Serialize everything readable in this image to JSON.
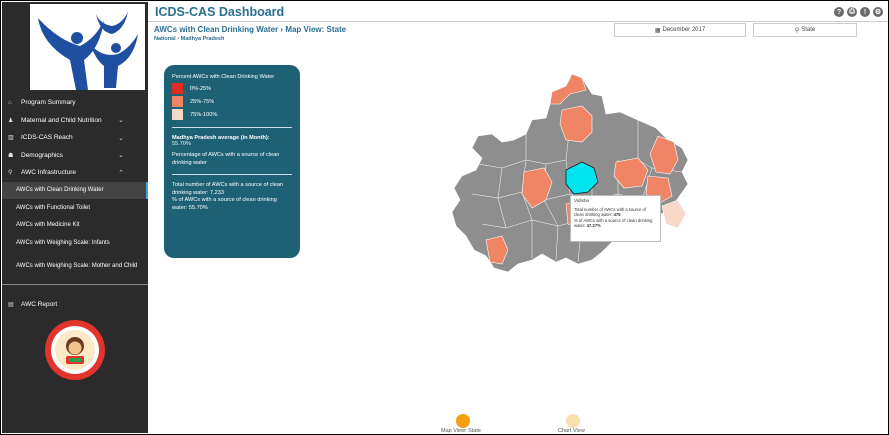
{
  "sidebar": {
    "nav": [
      {
        "label": "Program Summary",
        "icon": "home-icon",
        "glyph": "⌂"
      },
      {
        "label": "Maternal and Child Nutrition",
        "icon": "person-icon",
        "glyph": "♟"
      },
      {
        "label": "ICDS-CAS Reach",
        "icon": "bar-chart-icon",
        "glyph": "▥"
      },
      {
        "label": "Demographics",
        "icon": "group-icon",
        "glyph": "☗"
      },
      {
        "label": "AWC Infrastructure",
        "icon": "map-marker-icon",
        "glyph": "⚲"
      }
    ],
    "sub_items": [
      "AWCs with Clean Drinking Water",
      "AWCs with Functional Toilet",
      "AWCs with Medicine Kit",
      "AWCs with Weighing Scale: Infants",
      "AWCs with Weighing Scale: Mother and Child"
    ],
    "awc_report": "AWC Report"
  },
  "header": {
    "title": "ICDS-CAS Dashboard",
    "subtitle": "AWCs with Clean Drinking Water",
    "view": "Map View: State",
    "crumb_root": "National",
    "crumb_leaf": "Madhya Pradesh"
  },
  "filters": {
    "month": "December 2017",
    "location": "State"
  },
  "legend": {
    "title": "Percent AWCs with Clean Drinking Water",
    "ranges": [
      {
        "label": "0%-25%",
        "color": "#e02b20"
      },
      {
        "label": "25%-75%",
        "color": "#f08565"
      },
      {
        "label": "75%-100%",
        "color": "#f8d8c8"
      }
    ],
    "avg_label": "Madhya Pradesh average (in Month):",
    "avg_value": "55.70%",
    "avg_desc": "Percentage of AWCs with a source of clean drinking water",
    "total_text": "Total number of AWCs with a source of clean drinking water: 7,233",
    "pct_text": "% of AWCs with a source of clean drinking water: 55.70%"
  },
  "tooltip": {
    "district": "Vidisha",
    "total_label": "Total number of AWCs with a source of clean drinking water:",
    "total_value": "476",
    "pct_label": "% of AWCs with a source of clean drinking water:",
    "pct_value": "47.27%"
  },
  "views": {
    "map_label": "Map View: State",
    "chart_label": "Chart View"
  },
  "colors": {
    "gray": "#8e8e8e",
    "mid": "#f08565",
    "light": "#f8d8c8",
    "highlight": "#00e5f0",
    "active_dot": "#f5a010",
    "inactive_dot": "#f8dfae"
  }
}
